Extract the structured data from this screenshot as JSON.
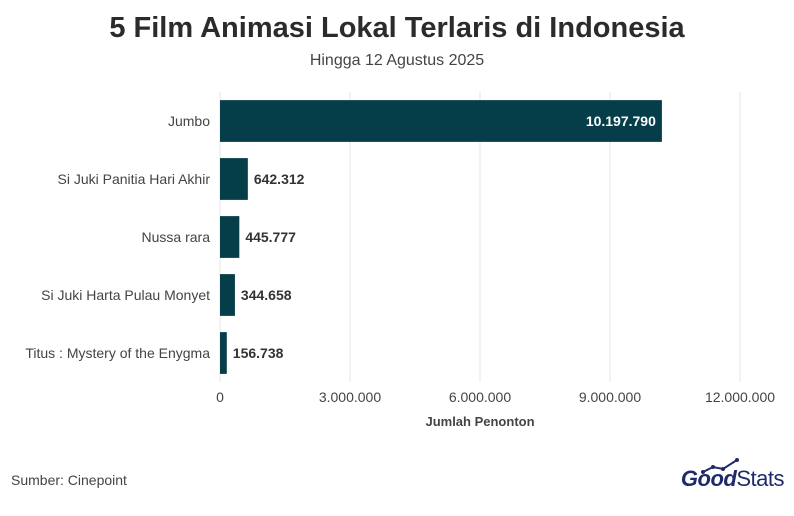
{
  "header": {
    "title": "5 Film Animasi Lokal Terlaris di Indonesia",
    "subtitle": "Hingga 12 Agustus 2025"
  },
  "footer": {
    "source": "Sumber: Cinepoint",
    "logo_good": "Good",
    "logo_stats": "Stats"
  },
  "colors": {
    "bar": "#053d48",
    "grid": "#e6e6e6",
    "label_inside": "#ffffff",
    "label_outside": "#333333",
    "brand": "#1f2a6b"
  },
  "chart_data": {
    "type": "bar",
    "orientation": "horizontal",
    "title": "5 Film Animasi Lokal Terlaris di Indonesia",
    "subtitle": "Hingga 12 Agustus 2025",
    "xlabel": "Jumlah Penonton",
    "ylabel": "",
    "categories": [
      "Jumbo",
      "Si Juki Panitia Hari Akhir",
      "Nussa rara",
      "Si Juki Harta Pulau Monyet",
      "Titus : Mystery of the Enygma"
    ],
    "values": [
      10197790,
      642312,
      445777,
      344658,
      156738
    ],
    "value_labels": [
      "10.197.790",
      "642.312",
      "445.777",
      "344.658",
      "156.738"
    ],
    "xlim": [
      0,
      12000000
    ],
    "xticks": [
      0,
      3000000,
      6000000,
      9000000,
      12000000
    ],
    "xtick_labels": [
      "0",
      "3.000.000",
      "6.000.000",
      "9.000.000",
      "12.000.000"
    ],
    "grid": true,
    "legend": "none"
  }
}
